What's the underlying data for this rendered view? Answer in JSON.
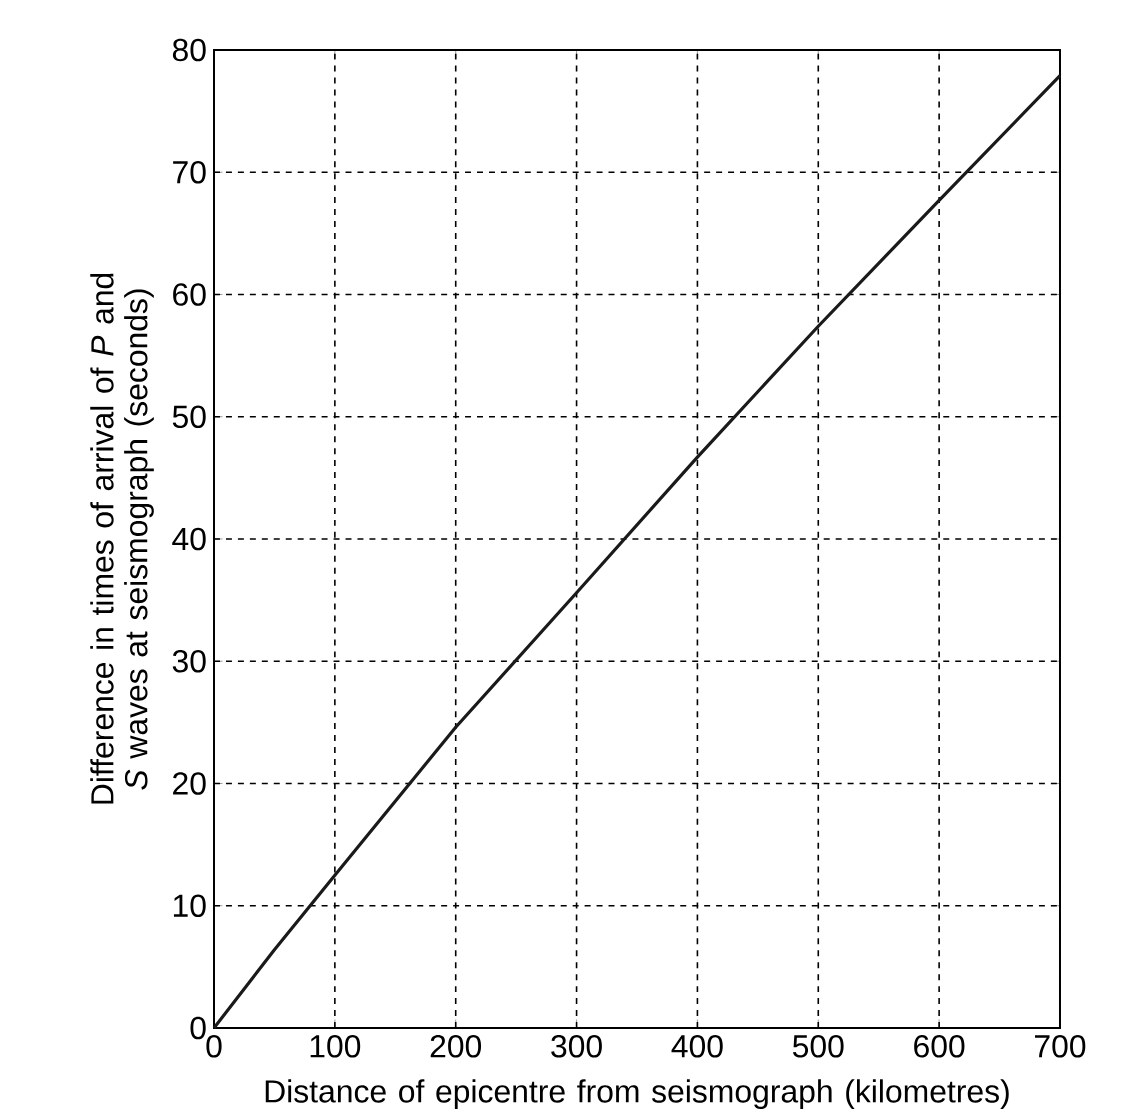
{
  "chart_data": {
    "type": "line",
    "xlabel": "Distance of epicentre from seismograph (kilometres)",
    "ylabel": "Difference in times of arrival of *P* and *S* waves at seismograph (seconds)",
    "x": [
      0,
      50,
      100,
      200,
      300,
      400,
      500,
      600,
      700
    ],
    "values": [
      0,
      6.4,
      12.5,
      24.6,
      35.6,
      46.7,
      57.4,
      67.7,
      77.9
    ],
    "color": "#1a1a1a",
    "xlim": [
      0,
      700
    ],
    "ylim": [
      0,
      80
    ],
    "xticks": [
      0,
      100,
      200,
      300,
      400,
      500,
      600,
      700
    ],
    "yticks": [
      0,
      10,
      20,
      30,
      40,
      50,
      60,
      70,
      80
    ],
    "grid": true,
    "marker": "none",
    "line_style": "solid"
  }
}
